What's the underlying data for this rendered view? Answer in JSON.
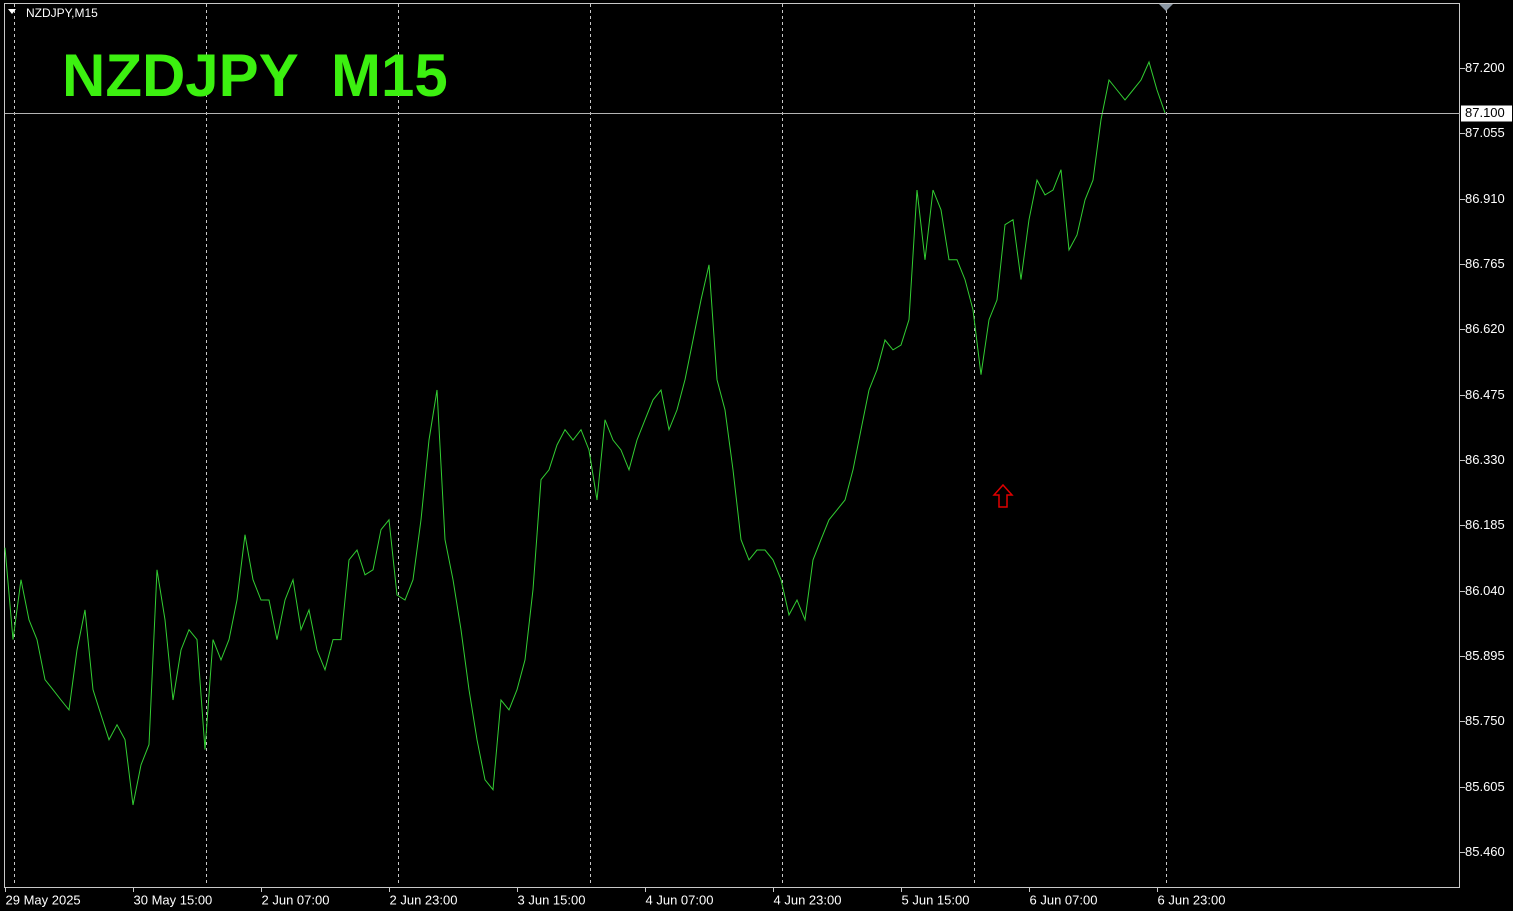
{
  "chart_data": {
    "type": "line",
    "header": "NZDJPY,M15",
    "title": "NZDJPY  M15",
    "categories": [
      "29 May 2025",
      null,
      null,
      null,
      null,
      null,
      null,
      null,
      null,
      null,
      null,
      null,
      null,
      null,
      null,
      null,
      "30 May 15:00",
      null,
      null,
      null,
      null,
      null,
      null,
      null,
      null,
      null,
      null,
      null,
      null,
      null,
      null,
      null,
      "2 Jun 07:00",
      null,
      null,
      null,
      null,
      null,
      null,
      null,
      null,
      null,
      null,
      null,
      null,
      null,
      null,
      null,
      "2 Jun 23:00",
      null,
      null,
      null,
      null,
      null,
      null,
      null,
      null,
      null,
      null,
      null,
      null,
      null,
      null,
      null,
      "3 Jun 15:00",
      null,
      null,
      null,
      null,
      null,
      null,
      null,
      null,
      null,
      null,
      null,
      null,
      null,
      null,
      null,
      "4 Jun 07:00",
      null,
      null,
      null,
      null,
      null,
      null,
      null,
      null,
      null,
      null,
      null,
      null,
      null,
      null,
      null,
      "4 Jun 23:00",
      null,
      null,
      null,
      null,
      null,
      null,
      null,
      null,
      null,
      null,
      null,
      null,
      null,
      null,
      null,
      "5 Jun 15:00",
      null,
      null,
      null,
      null,
      null,
      null,
      null,
      null,
      null,
      null,
      null,
      null,
      null,
      null,
      null,
      "6 Jun 07:00",
      null,
      null,
      null,
      null,
      null,
      null,
      null,
      null,
      null,
      null,
      null,
      null,
      null,
      null,
      null,
      "6 Jun 23:00",
      null
    ],
    "values": [
      86.135,
      85.931,
      86.064,
      85.975,
      85.931,
      85.842,
      85.82,
      85.797,
      85.775,
      85.908,
      85.997,
      85.82,
      85.764,
      85.709,
      85.742,
      85.709,
      85.564,
      85.653,
      85.698,
      86.086,
      85.975,
      85.797,
      85.908,
      85.953,
      85.931,
      85.687,
      85.931,
      85.886,
      85.931,
      86.019,
      86.164,
      86.064,
      86.019,
      86.019,
      85.931,
      86.019,
      86.064,
      85.953,
      85.997,
      85.908,
      85.864,
      85.931,
      85.931,
      86.108,
      86.13,
      86.075,
      86.086,
      86.175,
      86.197,
      86.03,
      86.019,
      86.064,
      86.197,
      86.374,
      86.485,
      86.153,
      86.064,
      85.953,
      85.82,
      85.709,
      85.62,
      85.598,
      85.797,
      85.775,
      85.82,
      85.886,
      86.042,
      86.286,
      86.308,
      86.363,
      86.397,
      86.374,
      86.397,
      86.352,
      86.241,
      86.419,
      86.374,
      86.352,
      86.308,
      86.374,
      86.419,
      86.463,
      86.485,
      86.397,
      86.441,
      86.508,
      86.596,
      86.685,
      86.763,
      86.508,
      86.441,
      86.308,
      86.153,
      86.108,
      86.13,
      86.13,
      86.108,
      86.064,
      85.986,
      86.019,
      85.975,
      86.108,
      86.153,
      86.197,
      86.219,
      86.241,
      86.308,
      86.397,
      86.485,
      86.53,
      86.596,
      86.574,
      86.585,
      86.641,
      86.929,
      86.774,
      86.929,
      86.885,
      86.774,
      86.774,
      86.73,
      86.663,
      86.519,
      86.641,
      86.685,
      86.852,
      86.863,
      86.73,
      86.863,
      86.951,
      86.918,
      86.929,
      86.974,
      86.796,
      86.829,
      86.907,
      86.951,
      87.085,
      87.173,
      87.151,
      87.129,
      87.151,
      87.173,
      87.213,
      87.151,
      87.1
    ],
    "color": "#32cd32",
    "ylim": [
      85.382,
      87.344
    ],
    "yticks": [
      {
        "value": 85.46,
        "label": "85.460"
      },
      85.605,
      {
        "value": 85.75,
        "label": "85.750"
      },
      85.895,
      {
        "value": 86.04,
        "label": "86.040"
      },
      86.185,
      {
        "value": 86.33,
        "label": "86.330"
      },
      86.475,
      {
        "value": 86.62,
        "label": "86.620"
      },
      86.765,
      {
        "value": 86.91,
        "label": "86.910"
      },
      87.055,
      {
        "value": 87.2,
        "label": "87.200"
      }
    ],
    "price_line": {
      "value": 87.1,
      "label": "87.100"
    }
  }
}
